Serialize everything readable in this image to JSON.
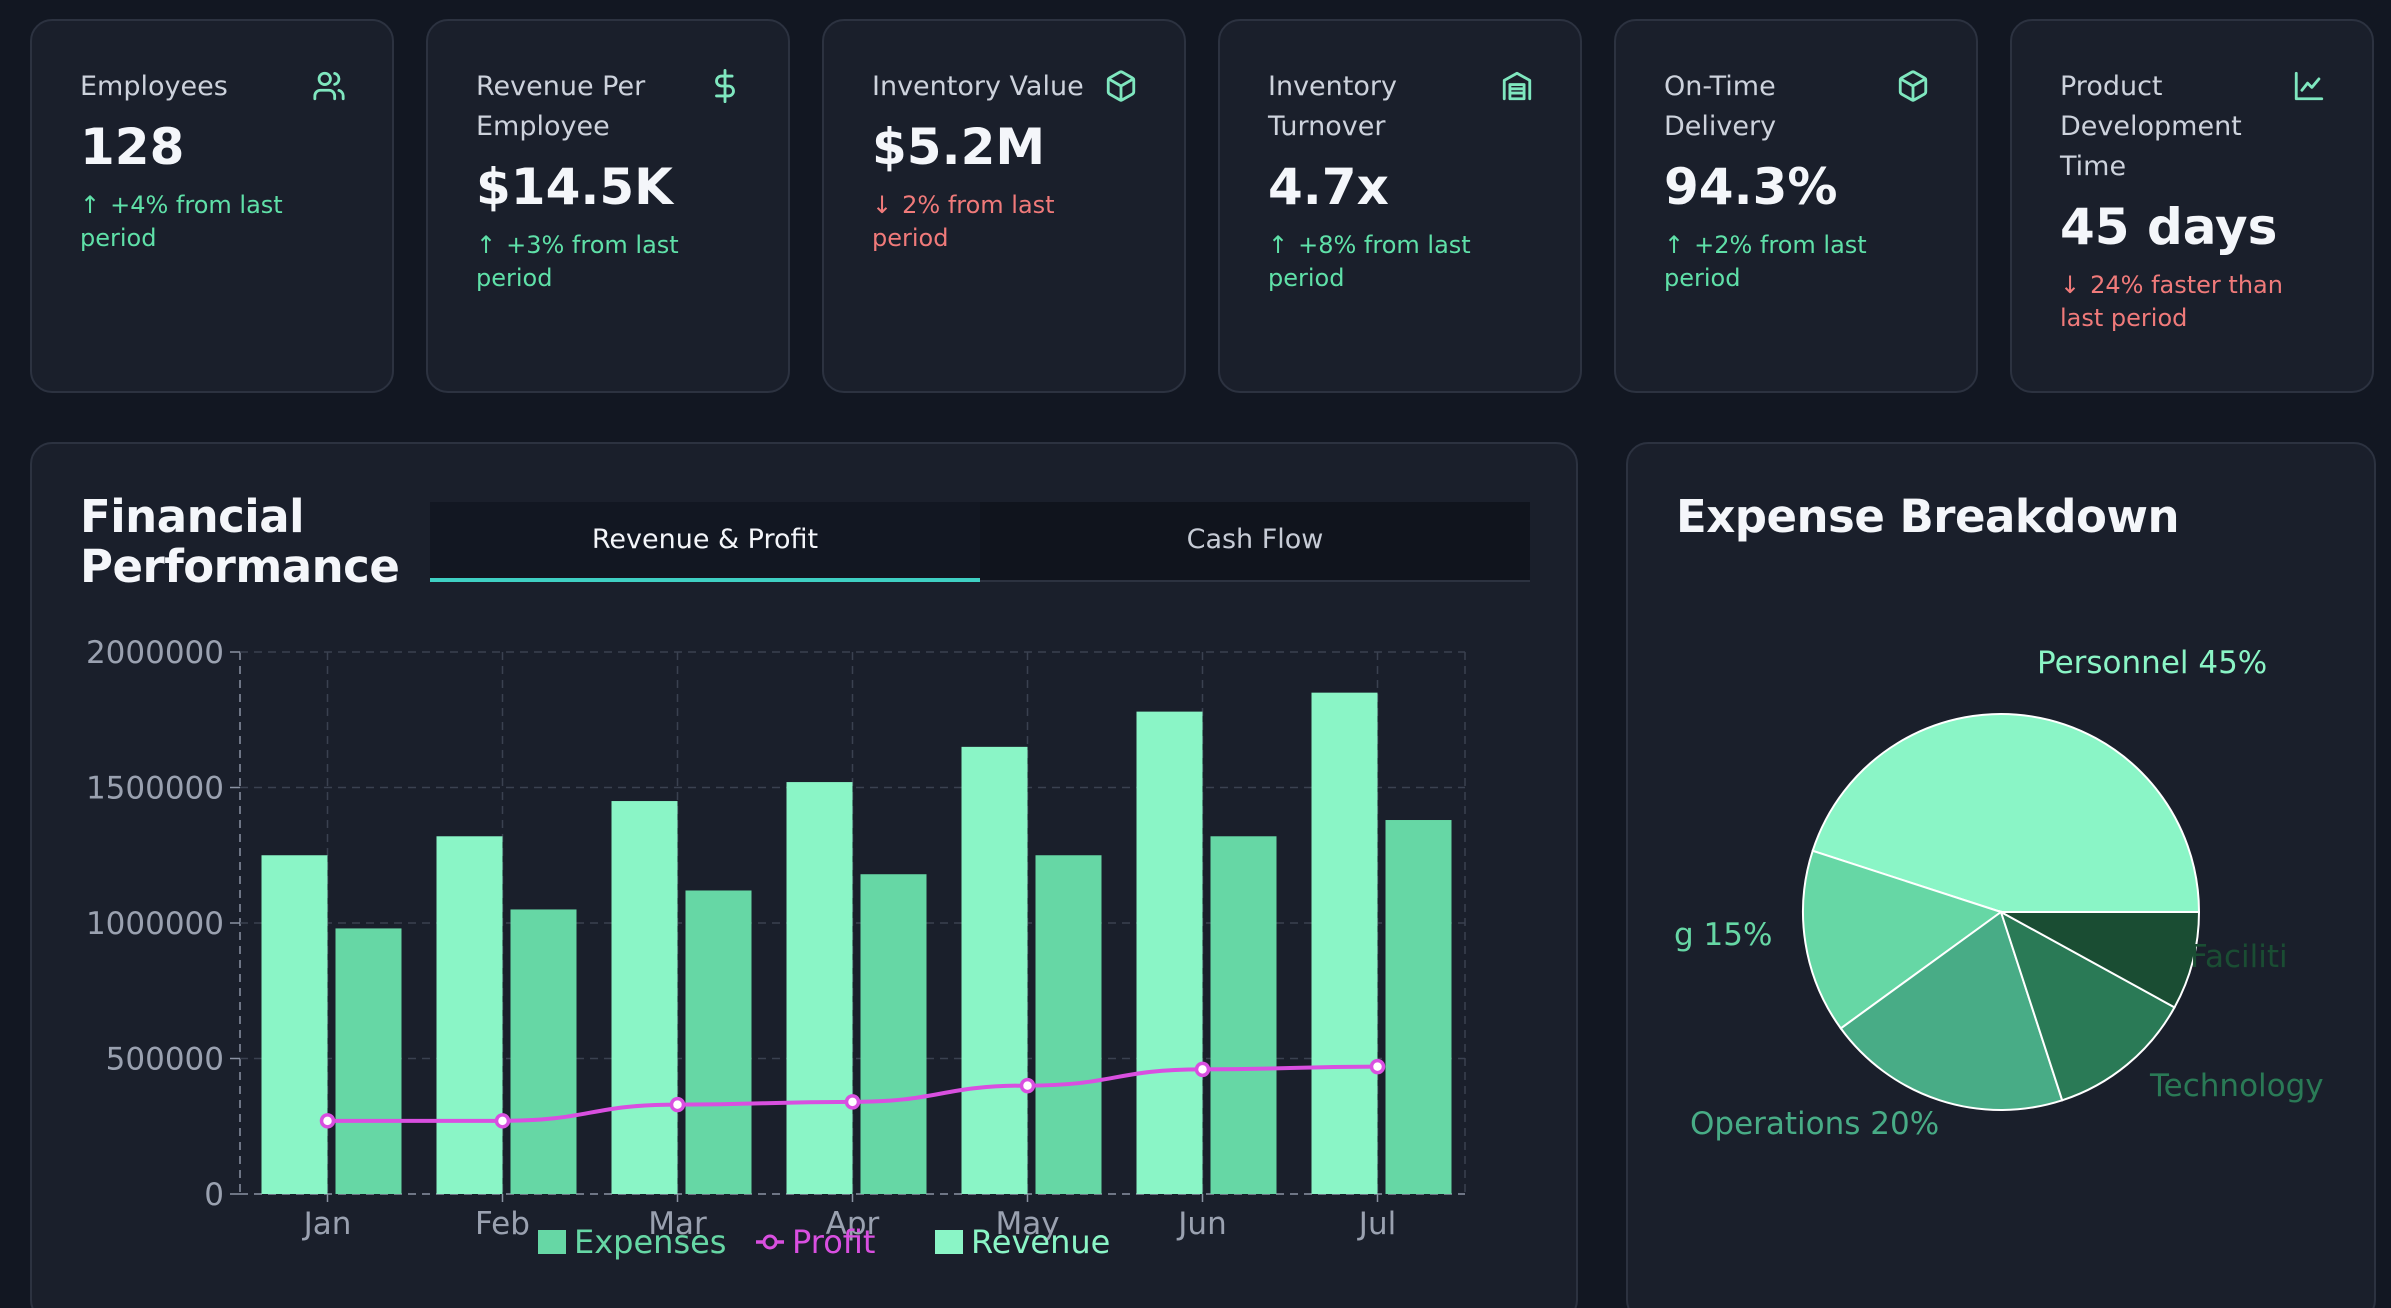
{
  "kpis": [
    {
      "title": "Employees",
      "value": "128",
      "change": "+4% from last period",
      "direction": "up",
      "icon": "users-icon"
    },
    {
      "title": "Revenue Per Employee",
      "value": "$14.5K",
      "change": "+3% from last period",
      "direction": "up",
      "icon": "dollar-icon"
    },
    {
      "title": "Inventory Value",
      "value": "$5.2M",
      "change": "2% from last period",
      "direction": "down",
      "icon": "box-icon"
    },
    {
      "title": "Inventory Turnover",
      "value": "4.7x",
      "change": "+8% from last period",
      "direction": "up",
      "icon": "warehouse-icon"
    },
    {
      "title": "On-Time Delivery",
      "value": "94.3%",
      "change": "+2% from last period",
      "direction": "up",
      "icon": "box-icon"
    },
    {
      "title": "Product Development Time",
      "value": "45 days",
      "change": "24% faster than last period",
      "direction": "down",
      "icon": "line-chart-icon"
    }
  ],
  "financial": {
    "title": "Financial Performance",
    "tabs": [
      {
        "label": "Revenue & Profit",
        "active": true
      },
      {
        "label": "Cash Flow",
        "active": false
      }
    ]
  },
  "expense": {
    "title": "Expense Breakdown"
  },
  "colors": {
    "revenue": "#8af5c6",
    "expenses": "#66d7a5",
    "profit": "#d94fe0",
    "up": "#5fe0a8",
    "down": "#f07a7a",
    "tab_accent": "#3fd0c4"
  },
  "chart_data": [
    {
      "type": "bar",
      "categories": [
        "Jan",
        "Feb",
        "Mar",
        "Apr",
        "May",
        "Jun",
        "Jul"
      ],
      "ylim": [
        0,
        2000000
      ],
      "yticks": [
        "0",
        "500000",
        "1000000",
        "1500000",
        "2000000"
      ],
      "grid": true,
      "legend_position": "bottom",
      "series": [
        {
          "name": "Revenue",
          "type": "bar",
          "color": "#8af5c6",
          "values": [
            1250000,
            1320000,
            1450000,
            1520000,
            1650000,
            1780000,
            1850000
          ]
        },
        {
          "name": "Expenses",
          "type": "bar",
          "color": "#66d7a5",
          "values": [
            980000,
            1050000,
            1120000,
            1180000,
            1250000,
            1320000,
            1380000
          ]
        },
        {
          "name": "Profit",
          "type": "line",
          "color": "#d94fe0",
          "values": [
            270000,
            270000,
            330000,
            340000,
            400000,
            460000,
            470000
          ]
        }
      ],
      "legend": [
        "Expenses",
        "Profit",
        "Revenue"
      ]
    },
    {
      "type": "pie",
      "slices": [
        {
          "label": "Personnel 45%",
          "value": 45,
          "color": "#8af5c6",
          "label_color": "#8af5c6"
        },
        {
          "label": "g 15%",
          "value": 15,
          "color": "#66d7a5",
          "label_color": "#66d7a5"
        },
        {
          "label": "Operations 20%",
          "value": 20,
          "color": "#48ac86",
          "label_color": "#48ac86"
        },
        {
          "label": "Technology",
          "value": 12,
          "color": "#2a7a56",
          "label_color": "#2a7a56"
        },
        {
          "label": "Faciliti",
          "value": 8,
          "color": "#1a4d33",
          "label_color": "#1a4d33"
        }
      ]
    }
  ]
}
